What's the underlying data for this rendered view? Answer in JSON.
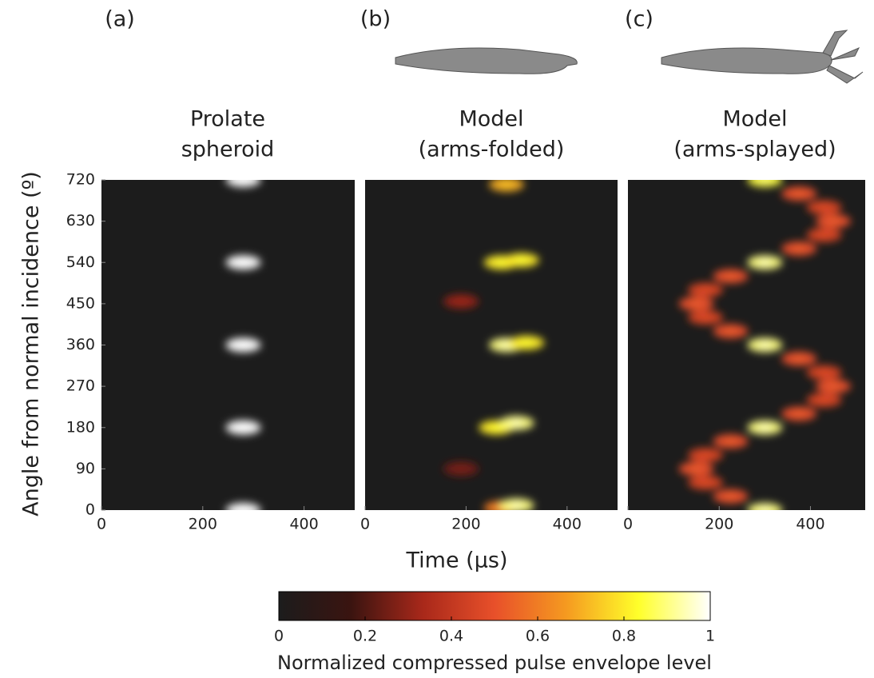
{
  "figure": {
    "ylabel": "Angle from normal incidence (º)",
    "xlabel": "Time (μs)",
    "colorbar": {
      "label": "Normalized compressed pulse envelope level",
      "clim": [
        0,
        1
      ],
      "ticks": [
        0,
        0.2,
        0.4,
        0.6,
        0.8,
        1
      ],
      "colors": [
        "#1c1c1c",
        "#3a1410",
        "#a8281a",
        "#e8502a",
        "#f59a20",
        "#ffff2a",
        "#ffffff"
      ]
    },
    "background": "#1c1c1c"
  },
  "chart_data": [
    {
      "type": "heatmap",
      "label": "(a)",
      "title": [
        "Prolate",
        "spheroid"
      ],
      "xlim": [
        0,
        500
      ],
      "xticks": [
        0,
        200,
        400
      ],
      "ylim": [
        0,
        720
      ],
      "yticks": [
        0,
        90,
        180,
        270,
        360,
        450,
        540,
        630,
        720
      ],
      "points": {
        "x": [
          280,
          280,
          280,
          280,
          280
        ],
        "y": [
          0,
          180,
          360,
          540,
          720
        ],
        "values": [
          1,
          1,
          1,
          1,
          1
        ]
      }
    },
    {
      "type": "heatmap",
      "label": "(b)",
      "title": [
        "Model",
        "(arms-folded)"
      ],
      "xlim": [
        0,
        500
      ],
      "xticks": [
        0,
        200,
        400
      ],
      "ylim": [
        0,
        720
      ],
      "points": {
        "x": [
          270,
          300,
          260,
          300,
          280,
          320,
          270,
          310,
          280,
          190,
          190
        ],
        "y": [
          5,
          10,
          180,
          190,
          360,
          365,
          540,
          545,
          710,
          455,
          90
        ],
        "values": [
          0.6,
          0.9,
          0.8,
          0.9,
          0.9,
          0.8,
          0.8,
          0.8,
          0.7,
          0.3,
          0.25
        ]
      }
    },
    {
      "type": "heatmap",
      "label": "(c)",
      "title": [
        "Model",
        "(arms-splayed)"
      ],
      "xlim": [
        0,
        520
      ],
      "xticks": [
        0,
        200,
        400
      ],
      "ylim": [
        0,
        720
      ],
      "points": {
        "x": [
          300,
          225,
          170,
          150,
          170,
          225,
          300,
          375,
          430,
          450,
          430,
          375,
          300,
          225,
          170,
          150,
          170,
          225,
          300,
          375,
          430,
          450,
          430,
          375,
          300
        ],
        "y": [
          0,
          30,
          60,
          90,
          120,
          150,
          180,
          210,
          240,
          270,
          300,
          330,
          360,
          390,
          420,
          450,
          480,
          510,
          540,
          570,
          600,
          630,
          660,
          690,
          720
        ],
        "values": [
          0.9,
          0.5,
          0.45,
          0.5,
          0.45,
          0.5,
          0.9,
          0.5,
          0.45,
          0.5,
          0.45,
          0.5,
          0.9,
          0.5,
          0.45,
          0.5,
          0.45,
          0.5,
          0.9,
          0.5,
          0.45,
          0.5,
          0.45,
          0.5,
          0.85
        ]
      }
    }
  ]
}
